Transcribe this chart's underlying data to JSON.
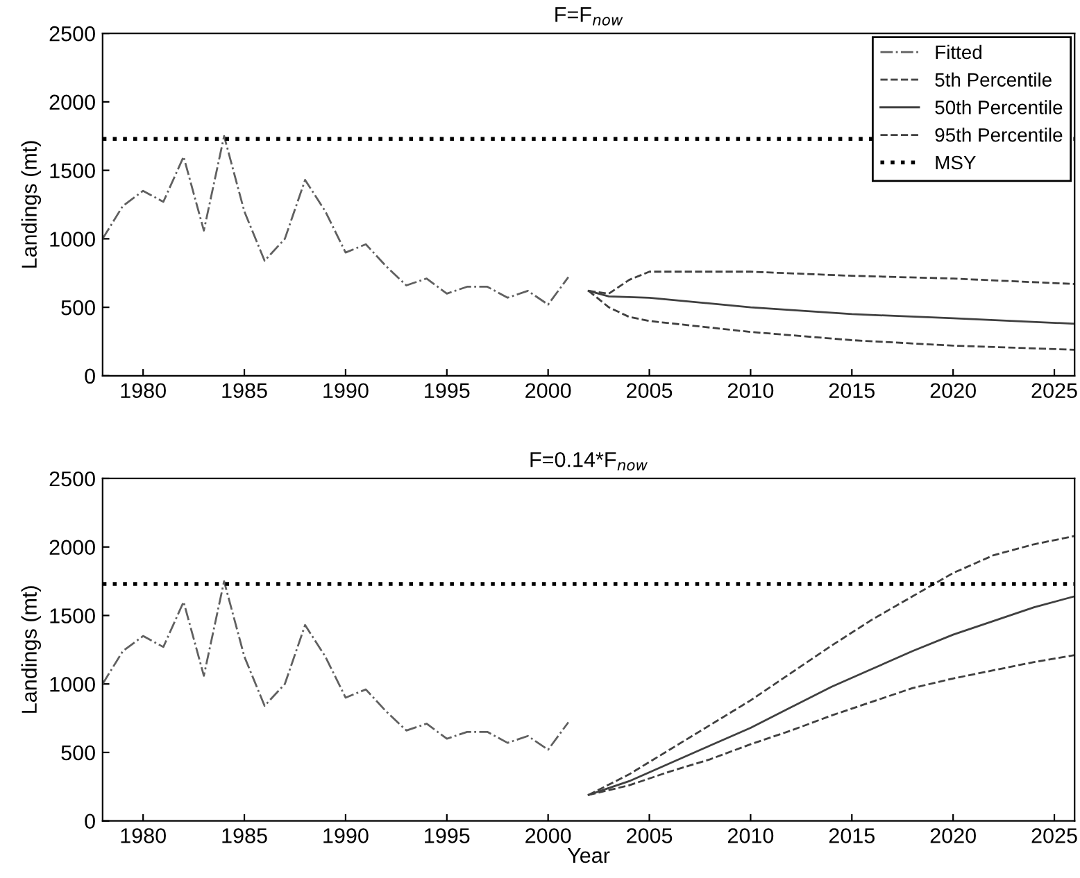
{
  "chart_data": [
    {
      "type": "line",
      "title": "F=F$_{now}$",
      "ylabel": "Landings (mt)",
      "xlim": [
        1978,
        2026
      ],
      "xticks": [
        1980,
        1985,
        1990,
        1995,
        2000,
        2005,
        2010,
        2015,
        2020,
        2025
      ],
      "ylim": [
        0,
        2500
      ],
      "yticks": [
        0,
        500,
        1000,
        1500,
        2000,
        2500
      ],
      "grid": false,
      "legend": "top right",
      "series": [
        {
          "name": "Fitted",
          "color": "#606060",
          "line_style": "dashdot",
          "x": [
            1978,
            1979,
            1980,
            1981,
            1982,
            1983,
            1984,
            1985,
            1986,
            1987,
            1988,
            1989,
            1990,
            1991,
            1992,
            1993,
            1994,
            1995,
            1996,
            1997,
            1998,
            1999,
            2000,
            2001
          ],
          "values": [
            1000,
            1240,
            1350,
            1270,
            1600,
            1060,
            1750,
            1200,
            840,
            1000,
            1430,
            1200,
            900,
            960,
            800,
            660,
            710,
            600,
            650,
            650,
            570,
            620,
            520,
            720
          ]
        },
        {
          "name": "5th Percentile",
          "color": "#404040",
          "line_style": "dashed",
          "x": [
            2002,
            2003,
            2004,
            2005,
            2010,
            2015,
            2020,
            2026
          ],
          "values": [
            620,
            500,
            430,
            400,
            320,
            260,
            220,
            190
          ]
        },
        {
          "name": "50th Percentile",
          "color": "#404040",
          "line_style": "solid",
          "x": [
            2002,
            2003,
            2005,
            2010,
            2015,
            2020,
            2026
          ],
          "values": [
            620,
            580,
            570,
            500,
            450,
            420,
            380
          ]
        },
        {
          "name": "95th Percentile",
          "color": "#404040",
          "line_style": "dashed",
          "x": [
            2002,
            2003,
            2004,
            2005,
            2010,
            2015,
            2020,
            2026
          ],
          "values": [
            620,
            600,
            700,
            760,
            760,
            730,
            710,
            670
          ]
        }
      ],
      "ref_lines": [
        {
          "axis": "y",
          "value": 1730,
          "label": "MSY",
          "color": "#000000",
          "line_style": "dotted"
        }
      ]
    },
    {
      "type": "line",
      "title": "F=0.14*F$_{now}$",
      "xlabel": "Year",
      "ylabel": "Landings (mt)",
      "xlim": [
        1978,
        2026
      ],
      "xticks": [
        1980,
        1985,
        1990,
        1995,
        2000,
        2005,
        2010,
        2015,
        2020,
        2025
      ],
      "ylim": [
        0,
        2500
      ],
      "yticks": [
        0,
        500,
        1000,
        1500,
        2000,
        2500
      ],
      "grid": false,
      "legend": false,
      "series": [
        {
          "color": "#606060",
          "line_style": "dashdot",
          "x": [
            1978,
            1979,
            1980,
            1981,
            1982,
            1983,
            1984,
            1985,
            1986,
            1987,
            1988,
            1989,
            1990,
            1991,
            1992,
            1993,
            1994,
            1995,
            1996,
            1997,
            1998,
            1999,
            2000,
            2001
          ],
          "values": [
            1000,
            1240,
            1350,
            1270,
            1600,
            1060,
            1750,
            1200,
            840,
            1000,
            1430,
            1200,
            900,
            960,
            800,
            660,
            710,
            600,
            650,
            650,
            570,
            620,
            520,
            720
          ]
        },
        {
          "color": "#404040",
          "line_style": "dashed",
          "x": [
            2002,
            2004,
            2006,
            2008,
            2010,
            2012,
            2014,
            2016,
            2018,
            2020,
            2022,
            2024,
            2026
          ],
          "values": [
            190,
            260,
            360,
            450,
            560,
            660,
            770,
            870,
            970,
            1040,
            1100,
            1160,
            1210
          ]
        },
        {
          "color": "#404040",
          "line_style": "solid",
          "x": [
            2002,
            2004,
            2006,
            2008,
            2010,
            2012,
            2014,
            2016,
            2018,
            2020,
            2022,
            2024,
            2026
          ],
          "values": [
            190,
            290,
            420,
            550,
            680,
            830,
            980,
            1110,
            1240,
            1360,
            1460,
            1560,
            1640
          ]
        },
        {
          "color": "#404040",
          "line_style": "dashed",
          "x": [
            2002,
            2004,
            2006,
            2008,
            2010,
            2012,
            2014,
            2016,
            2018,
            2020,
            2022,
            2024,
            2026
          ],
          "values": [
            190,
            340,
            520,
            700,
            880,
            1080,
            1280,
            1470,
            1640,
            1810,
            1940,
            2020,
            2080
          ]
        }
      ],
      "ref_lines": [
        {
          "axis": "y",
          "value": 1730,
          "color": "#000000",
          "line_style": "dotted"
        }
      ]
    }
  ]
}
